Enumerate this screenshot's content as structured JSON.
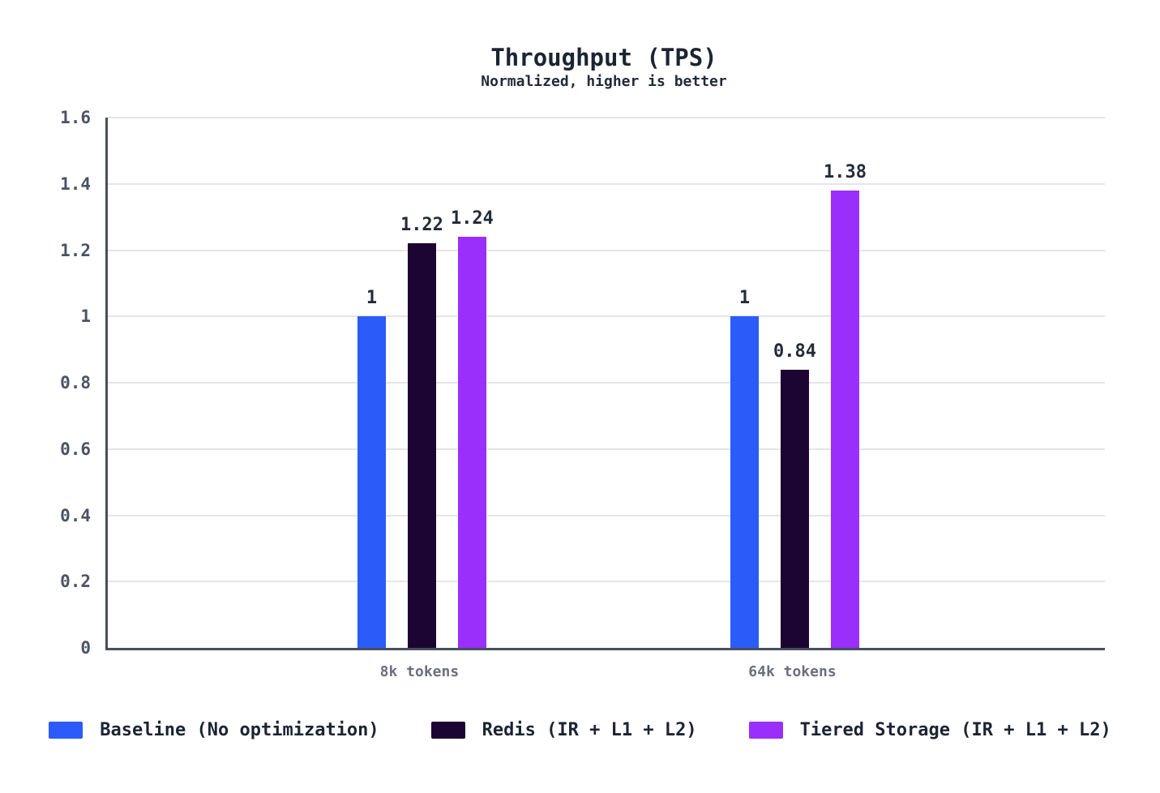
{
  "chart_data": {
    "type": "bar",
    "title": "Throughput (TPS)",
    "subtitle": "Normalized, higher is better",
    "categories": [
      "8k tokens",
      "64k tokens"
    ],
    "series": [
      {
        "name": "Baseline (No optimization)",
        "color": "#2b5cfa",
        "values": [
          1,
          1
        ]
      },
      {
        "name": "Redis (IR + L1 + L2)",
        "color": "#1d0533",
        "values": [
          1.22,
          0.84
        ]
      },
      {
        "name": "Tiered Storage (IR + L1 + L2)",
        "color": "#9a2ffb",
        "values": [
          1.24,
          1.38
        ]
      }
    ],
    "value_labels": [
      [
        "1",
        "1.22",
        "1.24"
      ],
      [
        "1",
        "0.84",
        "1.38"
      ]
    ],
    "yticks": [
      "0",
      "0.2",
      "0.4",
      "0.6",
      "0.8",
      "1",
      "1.2",
      "1.4",
      "1.6"
    ],
    "ylim": [
      0,
      1.6
    ],
    "grid": true,
    "legend_position": "bottom"
  },
  "colors": {
    "background": "#ffffff",
    "axis": "#474e5d",
    "gridline": "#e5e5ea",
    "title": "#1c2433",
    "subtitle": "#222b3a",
    "tick_label": "#4b5365",
    "category_label": "#697080",
    "value_label": "#222b3a"
  }
}
